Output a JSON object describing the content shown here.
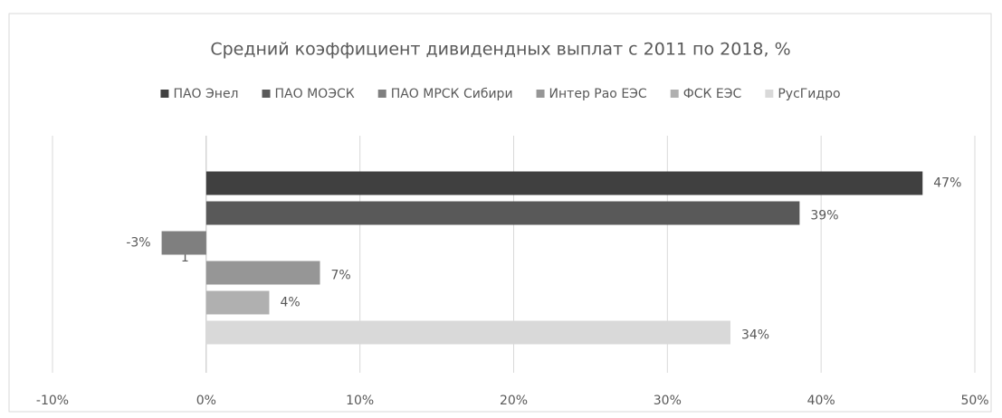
{
  "chart_data": {
    "type": "bar",
    "orientation": "horizontal",
    "title": "Средний коэффициент дивидендных выплат с 2011 по 2018, %",
    "categories": [
      "1"
    ],
    "series": [
      {
        "name": "ПАО Энел",
        "color": "#404040",
        "values": [
          46.6
        ],
        "value_labels": [
          "47%"
        ]
      },
      {
        "name": "ПАО МОЭСК",
        "color": "#595959",
        "values": [
          38.6
        ],
        "value_labels": [
          "39%"
        ]
      },
      {
        "name": "ПАО МРСК Сибири",
        "color": "#7f7f7f",
        "values": [
          -2.9
        ],
        "value_labels": [
          "-3%"
        ]
      },
      {
        "name": "Интер Рао ЕЭС",
        "color": "#969696",
        "values": [
          7.4
        ],
        "value_labels": [
          "7%"
        ]
      },
      {
        "name": "ФСК ЕЭС",
        "color": "#b0b0b0",
        "values": [
          4.1
        ],
        "value_labels": [
          "4%"
        ]
      },
      {
        "name": "РусГидро",
        "color": "#d9d9d9",
        "values": [
          34.1
        ],
        "value_labels": [
          "34%"
        ]
      }
    ],
    "xlim": [
      -10,
      50
    ],
    "xticks": [
      {
        "value": -10,
        "label": "-10%"
      },
      {
        "value": 0,
        "label": "0%"
      },
      {
        "value": 10,
        "label": "10%"
      },
      {
        "value": 20,
        "label": "20%"
      },
      {
        "value": 30,
        "label": "30%"
      },
      {
        "value": 40,
        "label": "40%"
      },
      {
        "value": 50,
        "label": "50%"
      }
    ],
    "grid": true,
    "legend": "top"
  }
}
